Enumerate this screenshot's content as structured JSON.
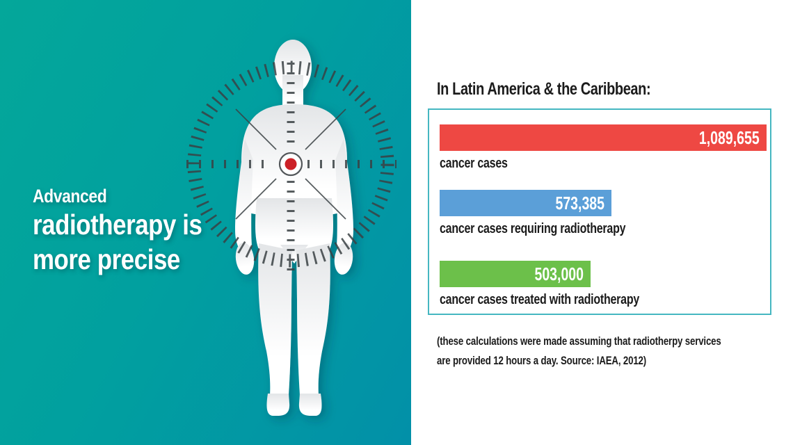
{
  "left_panel": {
    "headline": {
      "line1": "Advanced",
      "line2": "radiotherapy is",
      "line3": "more precise"
    },
    "colors": {
      "background_gradient_start": "#04a79a",
      "background_gradient_end": "#0290a8",
      "body_silhouette": "#ffffff",
      "reticle_ticks": "#3a4144",
      "target_dot": "#cc2127"
    }
  },
  "right_panel": {
    "title": "In Latin America & the Caribbean:",
    "box_border_color": "#45b7c1",
    "footnote_line1": "(these calculations were made assuming that radiotherpy services",
    "footnote_line2": "are provided 12 hours a day. Source: IAEA, 2012)"
  },
  "chart_data": {
    "type": "bar",
    "orientation": "horizontal",
    "title": "In Latin America & the Caribbean:",
    "categories": [
      "cancer cases",
      "cancer cases requiring radiotherapy",
      "cancer cases treated with radiotherapy"
    ],
    "values": [
      1089655,
      573385,
      503000
    ],
    "value_labels": [
      "1,089,655",
      "573,385",
      "503,000"
    ],
    "colors": [
      "#ee4843",
      "#5b9fd8",
      "#6cc04a"
    ],
    "xlim": [
      0,
      1089655
    ],
    "grid": false,
    "legend": false,
    "source": "IAEA, 2012"
  }
}
